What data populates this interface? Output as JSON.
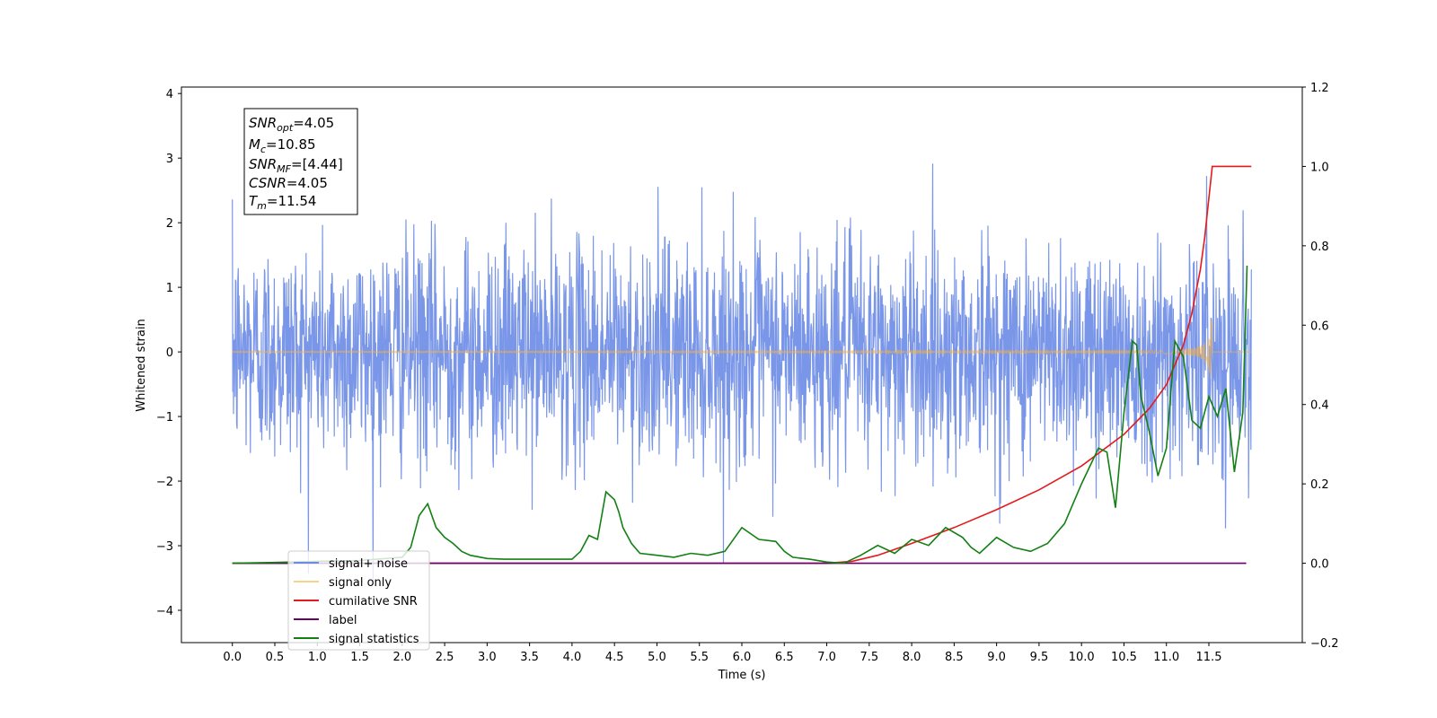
{
  "chart_data": {
    "type": "line",
    "title": "",
    "xlabel": "Time (s)",
    "ylabel": "Whitened strain",
    "xlim": [
      -0.6,
      12.6
    ],
    "ylim": [
      -4.5,
      4.1
    ],
    "y2lim": [
      -0.2,
      1.2
    ],
    "x_ticks": [
      0.0,
      0.5,
      1.0,
      1.5,
      2.0,
      2.5,
      3.0,
      3.5,
      4.0,
      4.5,
      5.0,
      5.5,
      6.0,
      6.5,
      7.0,
      7.5,
      8.0,
      8.5,
      9.0,
      9.5,
      10.0,
      10.5,
      11.0,
      11.5
    ],
    "x_tick_labels": [
      "0.0",
      "0.5",
      "1.0",
      "1.5",
      "2.0",
      "2.5",
      "3.0",
      "3.5",
      "4.0",
      "4.5",
      "5.0",
      "5.5",
      "6.0",
      "6.5",
      "7.0",
      "7.5",
      "8.0",
      "8.5",
      "9.0",
      "9.5",
      "10.0",
      "10.5",
      "11.0",
      "11.5"
    ],
    "y_ticks": [
      4,
      3,
      2,
      1,
      0,
      -1,
      -2,
      -3,
      -4
    ],
    "y_tick_labels": [
      "4",
      "3",
      "2",
      "1",
      "0",
      "−1",
      "−2",
      "−3",
      "−4"
    ],
    "y2_ticks": [
      1.2,
      1.0,
      0.8,
      0.6,
      0.4,
      0.2,
      0.0,
      -0.2
    ],
    "y2_tick_labels": [
      "1.2",
      "1.0",
      "0.8",
      "0.6",
      "0.4",
      "0.2",
      "0.0",
      "−0.2"
    ],
    "grid": false,
    "legend_position": "bottom-left",
    "series": [
      {
        "name": "signal+ noise",
        "axis": "left",
        "color": "#6b8be6",
        "kind": "noise",
        "t_start": 0.0,
        "t_end": 12.0,
        "typical_range": [
          -2.3,
          2.3
        ],
        "extreme_range": [
          -4.1,
          3.7
        ]
      },
      {
        "name": "signal only",
        "axis": "left",
        "color": "#f5b041",
        "kind": "chirp",
        "t_start": 0.0,
        "t_end": 12.0,
        "merger_time": 11.54,
        "peak_amplitude": 0.55
      },
      {
        "name": "cumilative SNR",
        "axis": "right",
        "color": "#e41a1c",
        "x": [
          0.0,
          7.0,
          7.3,
          7.6,
          8.0,
          8.5,
          9.0,
          9.5,
          10.0,
          10.5,
          10.8,
          11.0,
          11.2,
          11.3,
          11.4,
          11.45,
          11.5,
          11.54,
          12.0
        ],
        "values": [
          0.0,
          0.0,
          0.005,
          0.02,
          0.05,
          0.09,
          0.135,
          0.185,
          0.245,
          0.325,
          0.39,
          0.45,
          0.55,
          0.63,
          0.74,
          0.82,
          0.92,
          1.0,
          1.0
        ]
      },
      {
        "name": "label",
        "axis": "right",
        "color": "#6a006a",
        "x": [
          0.0,
          11.94
        ],
        "values": [
          0.0,
          0.0
        ]
      },
      {
        "name": "signal statistics",
        "axis": "right",
        "color": "#138013",
        "x": [
          0.0,
          0.5,
          1.0,
          1.5,
          2.0,
          2.1,
          2.2,
          2.3,
          2.4,
          2.5,
          2.6,
          2.7,
          2.8,
          3.0,
          3.2,
          3.5,
          3.8,
          4.0,
          4.1,
          4.2,
          4.3,
          4.4,
          4.5,
          4.55,
          4.6,
          4.7,
          4.8,
          5.0,
          5.2,
          5.4,
          5.6,
          5.8,
          6.0,
          6.2,
          6.4,
          6.5,
          6.6,
          6.8,
          7.0,
          7.2,
          7.4,
          7.6,
          7.8,
          8.0,
          8.2,
          8.4,
          8.6,
          8.7,
          8.8,
          9.0,
          9.2,
          9.4,
          9.6,
          9.8,
          10.0,
          10.2,
          10.3,
          10.4,
          10.5,
          10.6,
          10.65,
          10.7,
          10.8,
          10.9,
          11.0,
          11.1,
          11.2,
          11.3,
          11.4,
          11.5,
          11.6,
          11.7,
          11.8,
          11.9,
          11.95
        ],
        "values": [
          0.0,
          0.002,
          0.005,
          0.007,
          0.015,
          0.04,
          0.12,
          0.15,
          0.09,
          0.065,
          0.05,
          0.03,
          0.02,
          0.012,
          0.01,
          0.01,
          0.01,
          0.01,
          0.03,
          0.07,
          0.06,
          0.18,
          0.16,
          0.13,
          0.09,
          0.05,
          0.025,
          0.02,
          0.015,
          0.025,
          0.02,
          0.03,
          0.09,
          0.06,
          0.055,
          0.03,
          0.015,
          0.01,
          0.003,
          0.0,
          0.02,
          0.045,
          0.025,
          0.06,
          0.045,
          0.09,
          0.065,
          0.04,
          0.025,
          0.065,
          0.04,
          0.03,
          0.05,
          0.1,
          0.2,
          0.29,
          0.28,
          0.14,
          0.38,
          0.56,
          0.55,
          0.42,
          0.33,
          0.22,
          0.29,
          0.56,
          0.52,
          0.36,
          0.34,
          0.42,
          0.37,
          0.44,
          0.23,
          0.38,
          0.75
        ]
      }
    ],
    "legend_entries": [
      "signal+ noise",
      "signal only",
      "cumilative SNR",
      "label",
      "signal statistics"
    ],
    "annotation": {
      "snr_opt": "4.05",
      "mc": "10.85",
      "snr_mf": "[4.44]",
      "csnr": "4.05",
      "tm": "11.54"
    }
  }
}
